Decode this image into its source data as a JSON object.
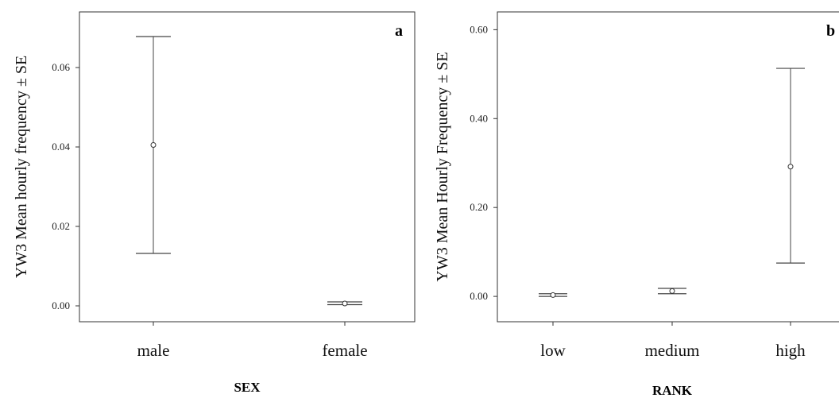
{
  "chart_data": [
    {
      "type": "errorbar",
      "panel_label": "a",
      "xlabel": "SEX",
      "ylabel": "YW3 Mean hourly frequency  ± SE",
      "ylim": [
        -0.004,
        0.074
      ],
      "yticks": [
        0.0,
        0.02,
        0.04,
        0.06
      ],
      "ytick_labels": [
        "0.00",
        "0.02",
        "0.04",
        "0.06"
      ],
      "categories": [
        "male",
        "female"
      ],
      "means": [
        0.0405,
        0.0006
      ],
      "lower": [
        0.0132,
        0.0003
      ],
      "upper": [
        0.0678,
        0.001
      ]
    },
    {
      "type": "errorbar",
      "panel_label": "b",
      "xlabel": "RANK",
      "ylabel": "YW3 Mean Hourly Frequency  ± SE",
      "ylim": [
        -0.057,
        0.64
      ],
      "yticks": [
        0.0,
        0.2,
        0.4,
        0.6
      ],
      "ytick_labels": [
        "0.00",
        "0.20",
        "0.40",
        "0.60"
      ],
      "categories": [
        "low",
        "medium",
        "high"
      ],
      "means": [
        0.003,
        0.012,
        0.292
      ],
      "lower": [
        0.0,
        0.006,
        0.075
      ],
      "upper": [
        0.006,
        0.018,
        0.513
      ]
    }
  ]
}
